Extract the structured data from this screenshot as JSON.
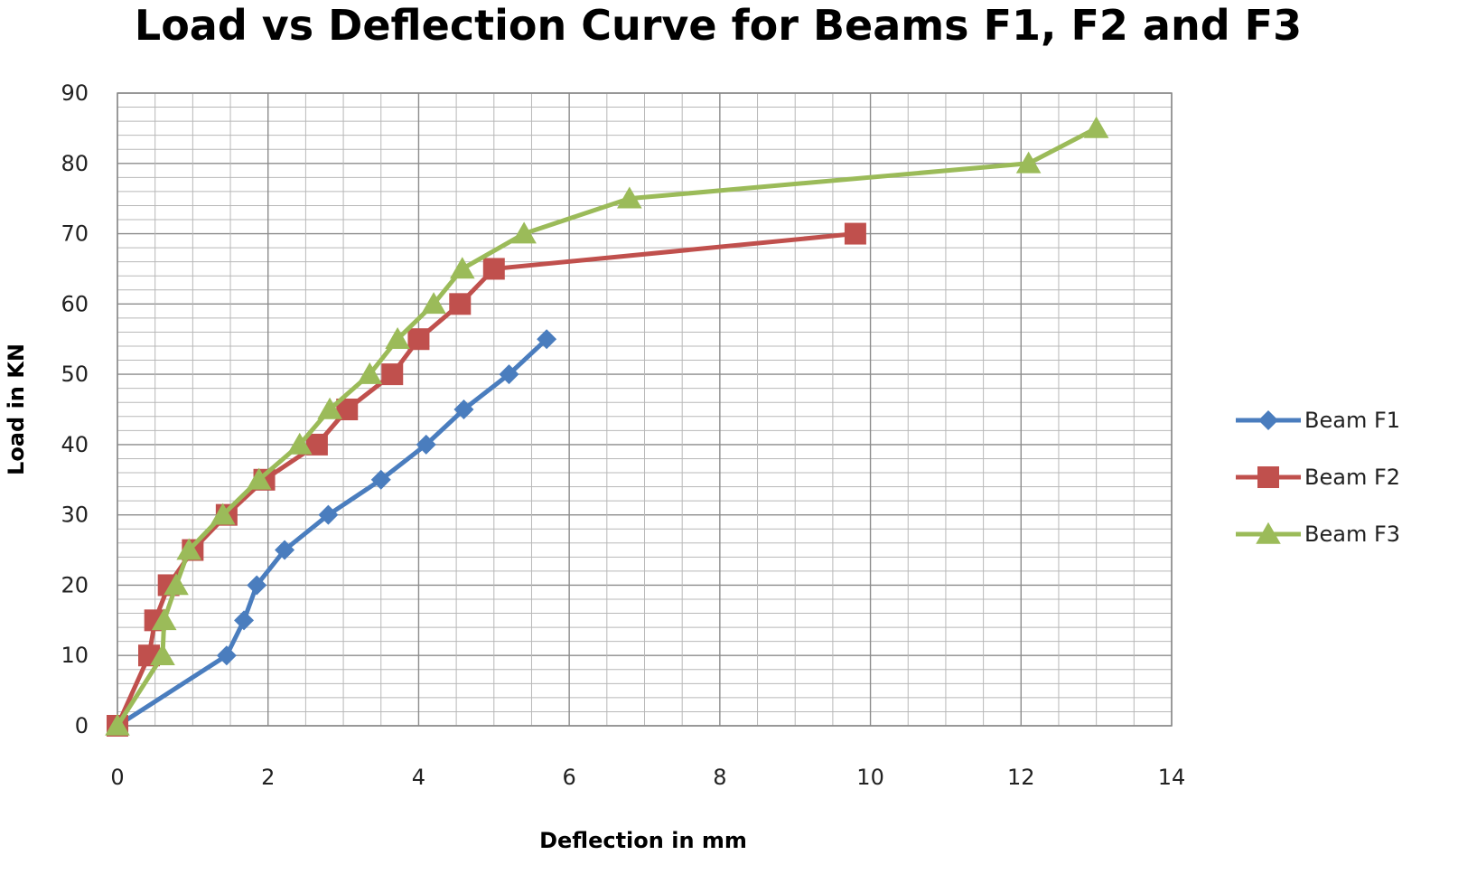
{
  "chart_data": {
    "type": "line",
    "title": "Load vs Deflection Curve for Beams F1, F2 and F3",
    "xlabel": "Deflection in mm",
    "ylabel": "Load in KN",
    "xlim": [
      0,
      14
    ],
    "ylim": [
      0,
      90
    ],
    "x_ticks": [
      0,
      2,
      4,
      6,
      8,
      10,
      12,
      14
    ],
    "y_ticks": [
      0,
      10,
      20,
      30,
      40,
      50,
      60,
      70,
      80,
      90
    ],
    "x_tick_labels": [
      "0",
      "2",
      "4",
      "6",
      "8",
      "10",
      "12",
      "14"
    ],
    "y_tick_labels": [
      "0",
      "10",
      "20",
      "30",
      "40",
      "50",
      "60",
      "70",
      "80",
      "90"
    ],
    "grid": true,
    "legend_position": "right",
    "series": [
      {
        "name": "Beam F1",
        "color": "#4a7dbe",
        "marker": "diamond",
        "x": [
          0,
          1.45,
          1.68,
          1.85,
          2.22,
          2.8,
          3.5,
          4.1,
          4.6,
          5.2,
          5.7
        ],
        "y": [
          0,
          10,
          15,
          20,
          25,
          30,
          35,
          40,
          45,
          50,
          55
        ]
      },
      {
        "name": "Beam F2",
        "color": "#c0504d",
        "marker": "square",
        "x": [
          0,
          0.42,
          0.5,
          0.68,
          1.0,
          1.45,
          1.95,
          2.65,
          3.05,
          3.65,
          4.0,
          4.55,
          5.0,
          9.8
        ],
        "y": [
          0,
          10,
          15,
          20,
          25,
          30,
          35,
          40,
          45,
          50,
          55,
          60,
          65,
          70
        ]
      },
      {
        "name": "Beam F3",
        "color": "#9bbb59",
        "marker": "triangle",
        "x": [
          0,
          0.6,
          0.62,
          0.78,
          0.95,
          1.4,
          1.88,
          2.42,
          2.82,
          3.35,
          3.72,
          4.2,
          4.58,
          5.4,
          6.8,
          12.1,
          13.0
        ],
        "y": [
          0,
          10,
          15,
          20,
          25,
          30,
          35,
          40,
          45,
          50,
          55,
          60,
          65,
          70,
          75,
          80,
          85
        ]
      }
    ]
  }
}
